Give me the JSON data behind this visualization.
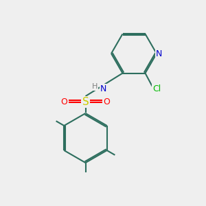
{
  "background_color": "#efefef",
  "bond_color": "#2d6e5e",
  "atom_colors": {
    "N": "#0000cc",
    "O": "#ff0000",
    "S": "#cccc00",
    "Cl": "#00bb00",
    "H": "#808080",
    "C": "#2d6e5e"
  },
  "figsize": [
    3.0,
    3.0
  ],
  "dpi": 100,
  "bond_lw": 1.5,
  "double_sep": 0.06
}
